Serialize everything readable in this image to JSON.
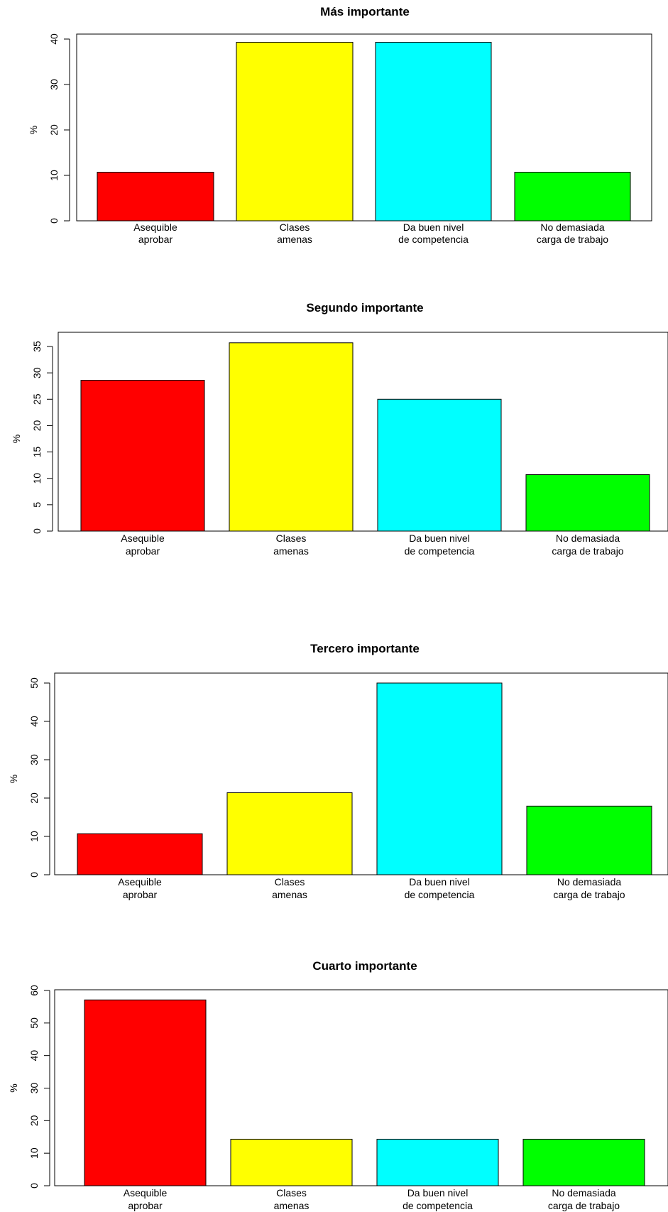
{
  "chart_data": [
    {
      "type": "bar",
      "title": "Más importante",
      "xlabel": "",
      "ylabel": "%",
      "categories": [
        "Asequible\naprobar",
        "Clases\namenas",
        "Da buen nivel\nde competencia",
        "No demasiada\ncarga de trabajo"
      ],
      "values": [
        10.7,
        39.3,
        39.3,
        10.7
      ],
      "colors": [
        "#ff0000",
        "#ffff00",
        "#00ffff",
        "#00ff00"
      ],
      "ylim": [
        0,
        40
      ],
      "yticks": [
        "0",
        "10",
        "20",
        "30",
        "40"
      ]
    },
    {
      "type": "bar",
      "title": "Segundo importante",
      "xlabel": "",
      "ylabel": "%",
      "categories": [
        "Asequible\naprobar",
        "Clases\namenas",
        "Da buen nivel\nde competencia",
        "No demasiada\ncarga de trabajo"
      ],
      "values": [
        28.6,
        35.7,
        25.0,
        10.7
      ],
      "colors": [
        "#ff0000",
        "#ffff00",
        "#00ffff",
        "#00ff00"
      ],
      "ylim": [
        0,
        35
      ],
      "yticks": [
        "0",
        "5",
        "10",
        "15",
        "20",
        "25",
        "30",
        "35"
      ]
    },
    {
      "type": "bar",
      "title": "Tercero importante",
      "xlabel": "",
      "ylabel": "%",
      "categories": [
        "Asequible\naprobar",
        "Clases\namenas",
        "Da buen nivel\nde competencia",
        "No demasiada\ncarga de trabajo"
      ],
      "values": [
        10.7,
        21.4,
        50.0,
        17.9
      ],
      "colors": [
        "#ff0000",
        "#ffff00",
        "#00ffff",
        "#00ff00"
      ],
      "ylim": [
        0,
        50
      ],
      "yticks": [
        "0",
        "10",
        "20",
        "30",
        "40",
        "50"
      ]
    },
    {
      "type": "bar",
      "title": "Cuarto importante",
      "xlabel": "",
      "ylabel": "%",
      "categories": [
        "Asequible\naprobar",
        "Clases\namenas",
        "Da buen nivel\nde competencia",
        "No demasiada\ncarga de trabajo"
      ],
      "values": [
        57.1,
        14.3,
        14.3,
        14.3
      ],
      "colors": [
        "#ff0000",
        "#ffff00",
        "#00ffff",
        "#00ff00"
      ],
      "ylim": [
        0,
        60
      ],
      "yticks": [
        "0",
        "10",
        "20",
        "30",
        "40",
        "50",
        "60"
      ]
    }
  ]
}
